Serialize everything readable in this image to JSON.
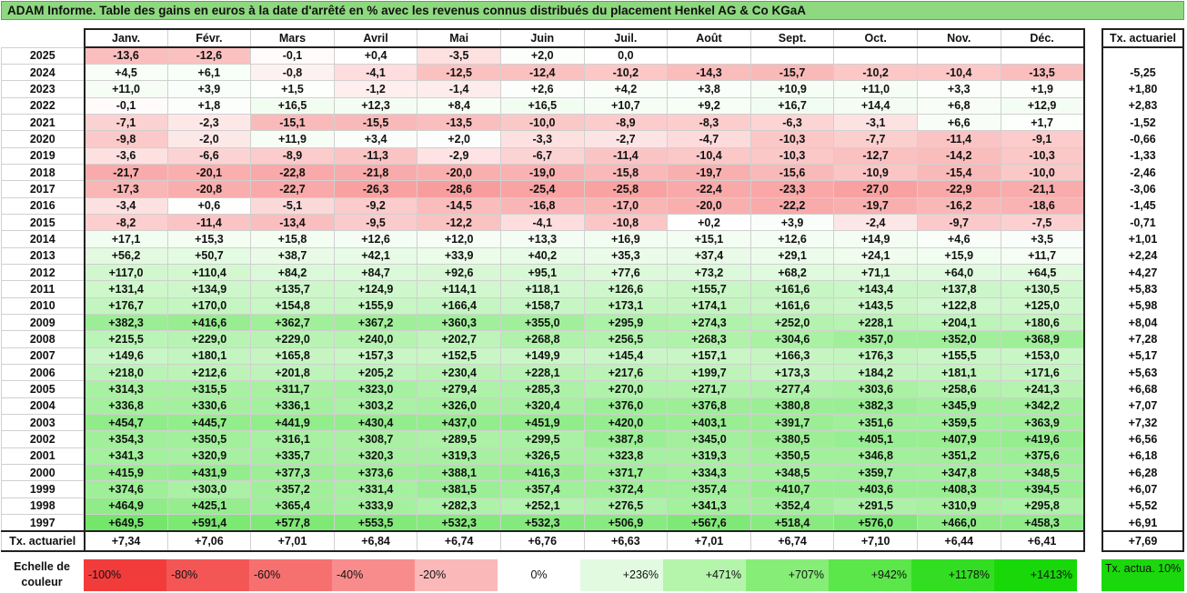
{
  "title": "ADAM Informe. Table des gains en euros à la date d'arrêté en % avec les revenus connus distribués du placement Henkel AG & Co KGaA",
  "months": [
    "Janv.",
    "Févr.",
    "Mars",
    "Avril",
    "Mai",
    "Juin",
    "Juil.",
    "Août",
    "Sept.",
    "Oct.",
    "Nov.",
    "Déc."
  ],
  "rate_header": "Tx. actuariel",
  "rows": [
    {
      "year": "2025",
      "values": [
        "-13,6",
        "-12,6",
        "-0,1",
        "+0,4",
        "-3,5",
        "+2,0",
        "0,0",
        "",
        "",
        "",
        "",
        ""
      ],
      "rate": ""
    },
    {
      "year": "2024",
      "values": [
        "+4,5",
        "+6,1",
        "-0,8",
        "-4,1",
        "-12,5",
        "-12,4",
        "-10,2",
        "-14,3",
        "-15,7",
        "-10,2",
        "-10,4",
        "-13,5"
      ],
      "rate": "-5,25"
    },
    {
      "year": "2023",
      "values": [
        "+11,0",
        "+3,9",
        "+1,5",
        "-1,2",
        "-1,4",
        "+2,6",
        "+4,2",
        "+3,8",
        "+10,9",
        "+11,0",
        "+3,3",
        "+1,9"
      ],
      "rate": "+1,80"
    },
    {
      "year": "2022",
      "values": [
        "-0,1",
        "+1,8",
        "+16,5",
        "+12,3",
        "+8,4",
        "+16,5",
        "+10,7",
        "+9,2",
        "+16,7",
        "+14,4",
        "+6,8",
        "+12,9"
      ],
      "rate": "+2,83"
    },
    {
      "year": "2021",
      "values": [
        "-7,1",
        "-2,3",
        "-15,1",
        "-15,5",
        "-13,5",
        "-10,0",
        "-8,9",
        "-8,3",
        "-6,3",
        "-3,1",
        "+6,6",
        "+1,7"
      ],
      "rate": "-1,52"
    },
    {
      "year": "2020",
      "values": [
        "-9,8",
        "-2,0",
        "+11,9",
        "+3,4",
        "+2,0",
        "-3,3",
        "-2,7",
        "-4,7",
        "-10,3",
        "-7,7",
        "-11,4",
        "-9,1"
      ],
      "rate": "-0,66"
    },
    {
      "year": "2019",
      "values": [
        "-3,6",
        "-6,6",
        "-8,9",
        "-11,3",
        "-2,9",
        "-6,7",
        "-11,4",
        "-10,4",
        "-10,3",
        "-12,7",
        "-14,2",
        "-10,3"
      ],
      "rate": "-1,33"
    },
    {
      "year": "2018",
      "values": [
        "-21,7",
        "-20,1",
        "-22,8",
        "-21,8",
        "-20,0",
        "-19,0",
        "-15,8",
        "-19,7",
        "-15,6",
        "-10,9",
        "-15,4",
        "-10,0"
      ],
      "rate": "-2,46"
    },
    {
      "year": "2017",
      "values": [
        "-17,3",
        "-20,8",
        "-22,7",
        "-26,3",
        "-28,6",
        "-25,4",
        "-25,8",
        "-22,4",
        "-23,3",
        "-27,0",
        "-22,9",
        "-21,1"
      ],
      "rate": "-3,06"
    },
    {
      "year": "2016",
      "values": [
        "-3,4",
        "+0,6",
        "-5,1",
        "-9,2",
        "-14,5",
        "-16,8",
        "-17,0",
        "-20,0",
        "-22,2",
        "-19,7",
        "-16,2",
        "-18,6"
      ],
      "rate": "-1,45"
    },
    {
      "year": "2015",
      "values": [
        "-8,2",
        "-11,4",
        "-13,4",
        "-9,5",
        "-12,2",
        "-4,1",
        "-10,8",
        "+0,2",
        "+3,9",
        "-2,4",
        "-9,7",
        "-7,5"
      ],
      "rate": "-0,71"
    },
    {
      "year": "2014",
      "values": [
        "+17,1",
        "+15,3",
        "+15,8",
        "+12,6",
        "+12,0",
        "+13,3",
        "+16,9",
        "+15,1",
        "+12,6",
        "+14,9",
        "+4,6",
        "+3,5"
      ],
      "rate": "+1,01"
    },
    {
      "year": "2013",
      "values": [
        "+56,2",
        "+50,7",
        "+38,7",
        "+42,1",
        "+33,9",
        "+40,2",
        "+35,3",
        "+37,4",
        "+29,1",
        "+24,1",
        "+15,9",
        "+11,7"
      ],
      "rate": "+2,24"
    },
    {
      "year": "2012",
      "values": [
        "+117,0",
        "+110,4",
        "+84,2",
        "+84,7",
        "+92,6",
        "+95,1",
        "+77,6",
        "+73,2",
        "+68,2",
        "+71,1",
        "+64,0",
        "+64,5"
      ],
      "rate": "+4,27"
    },
    {
      "year": "2011",
      "values": [
        "+131,4",
        "+134,9",
        "+135,7",
        "+124,9",
        "+114,1",
        "+118,1",
        "+126,6",
        "+155,7",
        "+161,6",
        "+143,4",
        "+137,8",
        "+130,5"
      ],
      "rate": "+5,83"
    },
    {
      "year": "2010",
      "values": [
        "+176,7",
        "+170,0",
        "+154,8",
        "+155,9",
        "+166,4",
        "+158,7",
        "+173,1",
        "+174,1",
        "+161,6",
        "+143,5",
        "+122,8",
        "+125,0"
      ],
      "rate": "+5,98"
    },
    {
      "year": "2009",
      "values": [
        "+382,3",
        "+416,6",
        "+362,7",
        "+367,2",
        "+360,3",
        "+355,0",
        "+295,9",
        "+274,3",
        "+252,0",
        "+228,1",
        "+204,1",
        "+180,6"
      ],
      "rate": "+8,04"
    },
    {
      "year": "2008",
      "values": [
        "+215,5",
        "+229,0",
        "+229,0",
        "+240,0",
        "+202,7",
        "+268,8",
        "+256,5",
        "+268,3",
        "+304,6",
        "+357,0",
        "+352,0",
        "+368,9"
      ],
      "rate": "+7,28"
    },
    {
      "year": "2007",
      "values": [
        "+149,6",
        "+180,1",
        "+165,8",
        "+157,3",
        "+152,5",
        "+149,9",
        "+145,4",
        "+157,1",
        "+166,3",
        "+176,3",
        "+155,5",
        "+153,0"
      ],
      "rate": "+5,17"
    },
    {
      "year": "2006",
      "values": [
        "+218,0",
        "+212,6",
        "+201,8",
        "+205,2",
        "+230,4",
        "+228,1",
        "+217,6",
        "+199,7",
        "+173,3",
        "+184,2",
        "+181,1",
        "+171,6"
      ],
      "rate": "+5,63"
    },
    {
      "year": "2005",
      "values": [
        "+314,3",
        "+315,5",
        "+311,7",
        "+323,0",
        "+279,4",
        "+285,3",
        "+270,0",
        "+271,7",
        "+277,4",
        "+303,6",
        "+258,6",
        "+241,3"
      ],
      "rate": "+6,68"
    },
    {
      "year": "2004",
      "values": [
        "+336,8",
        "+330,6",
        "+336,1",
        "+303,2",
        "+326,0",
        "+320,4",
        "+376,0",
        "+376,8",
        "+380,8",
        "+382,3",
        "+345,9",
        "+342,2"
      ],
      "rate": "+7,07"
    },
    {
      "year": "2003",
      "values": [
        "+454,7",
        "+445,7",
        "+441,9",
        "+430,4",
        "+437,0",
        "+451,9",
        "+420,0",
        "+403,1",
        "+391,7",
        "+351,6",
        "+359,5",
        "+363,9"
      ],
      "rate": "+7,32"
    },
    {
      "year": "2002",
      "values": [
        "+354,3",
        "+350,5",
        "+316,1",
        "+308,7",
        "+289,5",
        "+299,5",
        "+387,8",
        "+345,0",
        "+380,5",
        "+405,1",
        "+407,9",
        "+419,6"
      ],
      "rate": "+6,56"
    },
    {
      "year": "2001",
      "values": [
        "+341,3",
        "+320,9",
        "+335,7",
        "+320,3",
        "+319,3",
        "+326,5",
        "+323,8",
        "+319,3",
        "+350,5",
        "+346,8",
        "+351,2",
        "+375,6"
      ],
      "rate": "+6,18"
    },
    {
      "year": "2000",
      "values": [
        "+415,9",
        "+431,9",
        "+377,3",
        "+373,6",
        "+388,1",
        "+416,3",
        "+371,7",
        "+334,3",
        "+348,5",
        "+359,7",
        "+347,8",
        "+348,5"
      ],
      "rate": "+6,28"
    },
    {
      "year": "1999",
      "values": [
        "+374,6",
        "+303,0",
        "+357,2",
        "+331,4",
        "+381,5",
        "+357,4",
        "+372,4",
        "+357,4",
        "+410,7",
        "+403,6",
        "+408,3",
        "+394,5"
      ],
      "rate": "+6,07"
    },
    {
      "year": "1998",
      "values": [
        "+464,9",
        "+425,1",
        "+365,4",
        "+333,9",
        "+282,3",
        "+252,1",
        "+276,5",
        "+341,3",
        "+352,4",
        "+291,5",
        "+310,9",
        "+295,8"
      ],
      "rate": "+5,52"
    },
    {
      "year": "1997",
      "values": [
        "+649,5",
        "+591,4",
        "+577,8",
        "+553,5",
        "+532,3",
        "+532,3",
        "+506,9",
        "+567,6",
        "+518,4",
        "+576,0",
        "+466,0",
        "+458,3"
      ],
      "rate": "+6,91"
    }
  ],
  "footer": {
    "label": "Tx. actuariel",
    "values": [
      "+7,34",
      "+7,06",
      "+7,01",
      "+6,84",
      "+6,74",
      "+6,76",
      "+6,63",
      "+7,01",
      "+6,74",
      "+7,10",
      "+6,44",
      "+6,41"
    ],
    "rate": "+7,69"
  },
  "scale": {
    "label": "Echelle de couleur",
    "items": [
      {
        "label": "-100%",
        "color": "#f23c3c",
        "kind": "neg"
      },
      {
        "label": "-80%",
        "color": "#f45656",
        "kind": "neg"
      },
      {
        "label": "-60%",
        "color": "#f67070",
        "kind": "neg"
      },
      {
        "label": "-40%",
        "color": "#f88c8c",
        "kind": "neg"
      },
      {
        "label": "-20%",
        "color": "#fbb8b8",
        "kind": "neg"
      },
      {
        "label": "0%",
        "color": "#ffffff",
        "kind": "zero"
      },
      {
        "label": "+236%",
        "color": "#e2fbe0",
        "kind": "pos"
      },
      {
        "label": "+471%",
        "color": "#b4f5ab",
        "kind": "pos"
      },
      {
        "label": "+707%",
        "color": "#86ee77",
        "kind": "pos"
      },
      {
        "label": "+942%",
        "color": "#5be64a",
        "kind": "pos"
      },
      {
        "label": "+1178%",
        "color": "#33de22",
        "kind": "pos"
      },
      {
        "label": "+1413%",
        "color": "#18d809",
        "kind": "pos"
      }
    ],
    "rate_legend": {
      "label": "Tx. actua. 10%",
      "color": "#1bd80c"
    }
  }
}
